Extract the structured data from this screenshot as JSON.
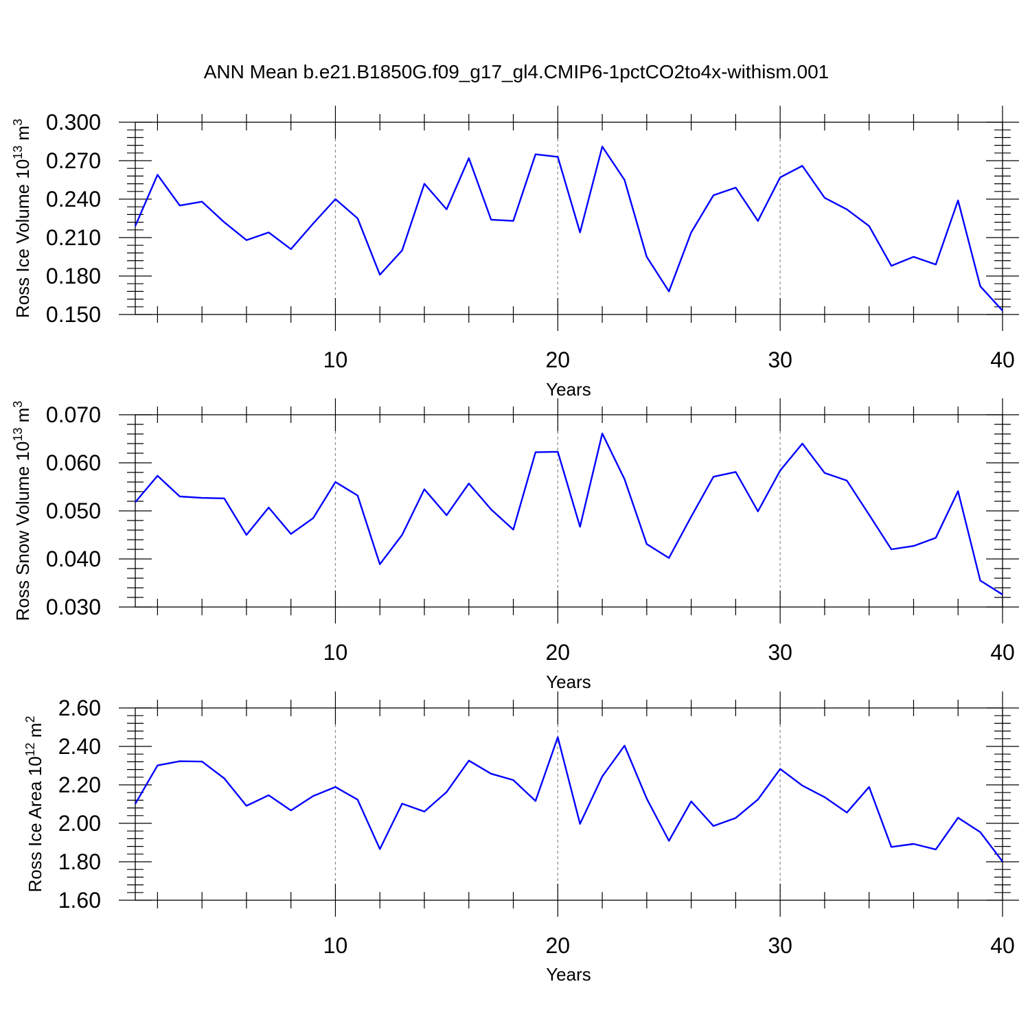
{
  "title": "ANN Mean b.e21.B1850G.f09_g17_gl4.CMIP6-1pctCO2to4x-withism.001",
  "colors": {
    "line": "#0000ff",
    "frame": "#000000",
    "grid": "#888888"
  },
  "chart_data": [
    {
      "type": "line",
      "ylabel_main": "Ross Ice Volume 10",
      "ylabel_sup": "13",
      "ylabel_unit": " m",
      "ylabel_unit_sup": "3",
      "xlabel": "Years",
      "xlim": [
        1,
        40
      ],
      "ylim": [
        0.15,
        0.3
      ],
      "y_ticks": [
        "0.150",
        "0.180",
        "0.210",
        "0.240",
        "0.270",
        "0.300"
      ],
      "x_ticks": [
        "10",
        "20",
        "30",
        "40"
      ],
      "grid_x": [
        10,
        20,
        30
      ],
      "x": [
        1,
        2,
        3,
        4,
        5,
        6,
        7,
        8,
        9,
        10,
        11,
        12,
        13,
        14,
        15,
        16,
        17,
        18,
        19,
        20,
        21,
        22,
        23,
        24,
        25,
        26,
        27,
        28,
        29,
        30,
        31,
        32,
        33,
        34,
        35,
        36,
        37,
        38,
        39,
        40
      ],
      "values": [
        0.219,
        0.259,
        0.235,
        0.238,
        0.222,
        0.208,
        0.214,
        0.201,
        0.221,
        0.24,
        0.225,
        0.181,
        0.2,
        0.252,
        0.232,
        0.272,
        0.224,
        0.223,
        0.275,
        0.273,
        0.214,
        0.281,
        0.255,
        0.195,
        0.168,
        0.214,
        0.243,
        0.249,
        0.223,
        0.257,
        0.266,
        0.241,
        0.232,
        0.219,
        0.188,
        0.195,
        0.189,
        0.239,
        0.172,
        0.153
      ]
    },
    {
      "type": "line",
      "ylabel_main": "Ross Snow Volume 10",
      "ylabel_sup": "13",
      "ylabel_unit": " m",
      "ylabel_unit_sup": "3",
      "xlabel": "Years",
      "xlim": [
        1,
        40
      ],
      "ylim": [
        0.03,
        0.07
      ],
      "y_ticks": [
        "0.030",
        "0.040",
        "0.050",
        "0.060",
        "0.070"
      ],
      "x_ticks": [
        "10",
        "20",
        "30",
        "40"
      ],
      "grid_x": [
        10,
        20,
        30
      ],
      "x": [
        1,
        2,
        3,
        4,
        5,
        6,
        7,
        8,
        9,
        10,
        11,
        12,
        13,
        14,
        15,
        16,
        17,
        18,
        19,
        20,
        21,
        22,
        23,
        24,
        25,
        26,
        27,
        28,
        29,
        30,
        31,
        32,
        33,
        34,
        35,
        36,
        37,
        38,
        39,
        40
      ],
      "values": [
        0.0518,
        0.0573,
        0.053,
        0.0527,
        0.0526,
        0.045,
        0.0507,
        0.0452,
        0.0485,
        0.056,
        0.0532,
        0.0389,
        0.045,
        0.0545,
        0.0491,
        0.0557,
        0.0503,
        0.0461,
        0.0622,
        0.0623,
        0.0467,
        0.0661,
        0.0566,
        0.0431,
        0.0402,
        0.0488,
        0.0571,
        0.0581,
        0.0499,
        0.0584,
        0.064,
        0.0579,
        0.0563,
        0.0492,
        0.042,
        0.0427,
        0.0444,
        0.0541,
        0.0355,
        0.0326
      ]
    },
    {
      "type": "line",
      "ylabel_main": "Ross Ice Area 10",
      "ylabel_sup": "12",
      "ylabel_unit": " m",
      "ylabel_unit_sup": "2",
      "xlabel": "Years",
      "xlim": [
        1,
        40
      ],
      "ylim": [
        1.6,
        2.6
      ],
      "y_ticks": [
        "1.60",
        "1.80",
        "2.00",
        "2.20",
        "2.40",
        "2.60"
      ],
      "x_ticks": [
        "10",
        "20",
        "30",
        "40"
      ],
      "grid_x": [
        10,
        20,
        30
      ],
      "x": [
        1,
        2,
        3,
        4,
        5,
        6,
        7,
        8,
        9,
        10,
        11,
        12,
        13,
        14,
        15,
        16,
        17,
        18,
        19,
        20,
        21,
        22,
        23,
        24,
        25,
        26,
        27,
        28,
        29,
        30,
        31,
        32,
        33,
        34,
        35,
        36,
        37,
        38,
        39,
        40
      ],
      "values": [
        2.101,
        2.301,
        2.323,
        2.321,
        2.234,
        2.091,
        2.146,
        2.067,
        2.142,
        2.189,
        2.123,
        1.866,
        2.102,
        2.061,
        2.163,
        2.326,
        2.258,
        2.225,
        2.116,
        2.448,
        1.997,
        2.244,
        2.404,
        2.129,
        1.909,
        2.114,
        1.986,
        2.028,
        2.124,
        2.283,
        2.196,
        2.136,
        2.056,
        2.189,
        1.877,
        1.893,
        1.864,
        2.029,
        1.954,
        1.801
      ]
    }
  ]
}
